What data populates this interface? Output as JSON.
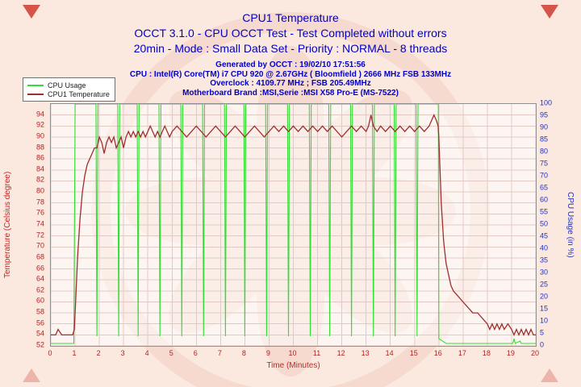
{
  "header": {
    "title": "CPU1 Temperature",
    "subtitle1": "OCCT 3.1.0 - CPU OCCT Test - Test Completed without errors",
    "subtitle2": "20min - Mode : Small Data Set - Priority : NORMAL - 8 threads",
    "info_lines": [
      "Generated by OCCT : 19/02/10 17:51:56",
      "CPU : Intel(R) Core(TM) i7 CPU 920 @ 2.67GHz ( Bloomfield ) 2666 MHz FSB 133MHz",
      "Overclock : 4109.77 MHz ; FSB 205.49MHz",
      "Motherboard Brand :MSI,Serie :MSI X58 Pro-E (MS-7522)"
    ]
  },
  "legend": {
    "items": [
      {
        "label": "CPU Usage",
        "color": "#33dd33"
      },
      {
        "label": "CPU1 Temperature",
        "color": "#9e2f2f"
      }
    ]
  },
  "colors": {
    "title_blue": "#0000cc",
    "temp_axis_red": "#b22222",
    "usage_axis_blue": "#2233bb",
    "background_pink": "#fbe9e0",
    "grid_pink": "#e2c9c3"
  },
  "chart_data": {
    "type": "line",
    "title": "CPU1 Temperature",
    "xlabel": "Time (Minutes)",
    "ylabel_left": "Temperature (Celsius degree)",
    "ylabel_right": "CPU Usage (in %)",
    "grid": true,
    "legend_position": "top-left",
    "x_range": [
      0,
      20
    ],
    "x_step": 1,
    "temp_axis": {
      "min": 52,
      "top": 96,
      "label_max": 94,
      "step": 2
    },
    "usage_axis": {
      "min": 0,
      "max": 100,
      "step": 5
    },
    "series": [
      {
        "name": "CPU Usage",
        "axis": "usage",
        "color": "#33dd33",
        "width": 1.1,
        "points": [
          [
            0,
            1
          ],
          [
            0.95,
            1
          ],
          [
            1,
            100
          ],
          [
            1.86,
            100
          ],
          [
            1.9,
            4
          ],
          [
            1.94,
            100
          ],
          [
            2.76,
            100
          ],
          [
            2.8,
            4
          ],
          [
            2.84,
            100
          ],
          [
            3.56,
            100
          ],
          [
            3.6,
            4
          ],
          [
            3.64,
            100
          ],
          [
            4.46,
            100
          ],
          [
            4.5,
            4
          ],
          [
            4.54,
            100
          ],
          [
            5.36,
            100
          ],
          [
            5.4,
            4
          ],
          [
            5.44,
            100
          ],
          [
            6.26,
            100
          ],
          [
            6.3,
            4
          ],
          [
            6.34,
            100
          ],
          [
            7.16,
            100
          ],
          [
            7.2,
            4
          ],
          [
            7.24,
            100
          ],
          [
            7.96,
            100
          ],
          [
            8,
            4
          ],
          [
            8.04,
            100
          ],
          [
            8.86,
            100
          ],
          [
            8.9,
            4
          ],
          [
            8.94,
            100
          ],
          [
            9.76,
            100
          ],
          [
            9.8,
            4
          ],
          [
            9.84,
            100
          ],
          [
            10.66,
            100
          ],
          [
            10.7,
            4
          ],
          [
            10.74,
            100
          ],
          [
            11.46,
            100
          ],
          [
            11.5,
            4
          ],
          [
            11.54,
            100
          ],
          [
            12.36,
            100
          ],
          [
            12.4,
            4
          ],
          [
            12.44,
            100
          ],
          [
            13.26,
            100
          ],
          [
            13.3,
            4
          ],
          [
            13.34,
            100
          ],
          [
            14.16,
            100
          ],
          [
            14.2,
            4
          ],
          [
            14.24,
            100
          ],
          [
            15.06,
            100
          ],
          [
            15.1,
            4
          ],
          [
            15.14,
            100
          ],
          [
            15.98,
            100
          ],
          [
            16,
            3
          ],
          [
            16.3,
            1
          ],
          [
            19.05,
            1
          ],
          [
            19.1,
            3
          ],
          [
            19.15,
            1
          ],
          [
            19.35,
            2
          ],
          [
            19.4,
            1
          ],
          [
            20,
            1
          ]
        ]
      },
      {
        "name": "CPU1 Temperature",
        "axis": "temp",
        "color": "#9e2f2f",
        "width": 1.3,
        "points": [
          [
            0,
            54
          ],
          [
            0.2,
            54
          ],
          [
            0.3,
            55
          ],
          [
            0.45,
            54
          ],
          [
            0.7,
            54
          ],
          [
            0.9,
            54
          ],
          [
            0.97,
            55
          ],
          [
            1,
            58
          ],
          [
            1.05,
            63
          ],
          [
            1.1,
            68
          ],
          [
            1.2,
            75
          ],
          [
            1.3,
            80
          ],
          [
            1.4,
            83
          ],
          [
            1.5,
            85
          ],
          [
            1.6,
            86
          ],
          [
            1.7,
            87
          ],
          [
            1.8,
            88
          ],
          [
            1.9,
            88
          ],
          [
            2,
            90
          ],
          [
            2.1,
            89
          ],
          [
            2.2,
            87
          ],
          [
            2.3,
            89
          ],
          [
            2.4,
            90
          ],
          [
            2.5,
            89
          ],
          [
            2.6,
            90
          ],
          [
            2.7,
            88
          ],
          [
            2.8,
            89
          ],
          [
            2.9,
            90
          ],
          [
            3,
            88
          ],
          [
            3.1,
            90
          ],
          [
            3.2,
            91
          ],
          [
            3.3,
            90
          ],
          [
            3.4,
            91
          ],
          [
            3.5,
            90
          ],
          [
            3.6,
            91
          ],
          [
            3.7,
            90
          ],
          [
            3.8,
            91
          ],
          [
            3.9,
            90
          ],
          [
            4,
            91
          ],
          [
            4.1,
            92
          ],
          [
            4.2,
            91
          ],
          [
            4.3,
            90
          ],
          [
            4.4,
            91
          ],
          [
            4.5,
            90
          ],
          [
            4.6,
            91
          ],
          [
            4.7,
            92
          ],
          [
            4.8,
            91
          ],
          [
            4.9,
            90
          ],
          [
            5,
            91
          ],
          [
            5.2,
            92
          ],
          [
            5.4,
            91
          ],
          [
            5.6,
            90
          ],
          [
            5.8,
            91
          ],
          [
            6,
            92
          ],
          [
            6.2,
            91
          ],
          [
            6.4,
            90
          ],
          [
            6.6,
            91
          ],
          [
            6.8,
            92
          ],
          [
            7,
            91
          ],
          [
            7.2,
            90
          ],
          [
            7.4,
            91
          ],
          [
            7.6,
            92
          ],
          [
            7.8,
            91
          ],
          [
            8,
            90
          ],
          [
            8.2,
            91
          ],
          [
            8.4,
            92
          ],
          [
            8.6,
            91
          ],
          [
            8.8,
            90
          ],
          [
            9,
            91
          ],
          [
            9.2,
            92
          ],
          [
            9.4,
            91
          ],
          [
            9.6,
            92
          ],
          [
            9.8,
            91
          ],
          [
            10,
            92
          ],
          [
            10.2,
            91
          ],
          [
            10.4,
            92
          ],
          [
            10.6,
            91
          ],
          [
            10.8,
            92
          ],
          [
            11,
            91
          ],
          [
            11.2,
            92
          ],
          [
            11.4,
            91
          ],
          [
            11.6,
            92
          ],
          [
            11.8,
            91
          ],
          [
            12,
            90
          ],
          [
            12.2,
            91
          ],
          [
            12.4,
            92
          ],
          [
            12.6,
            91
          ],
          [
            12.8,
            92
          ],
          [
            13,
            91
          ],
          [
            13.1,
            92
          ],
          [
            13.2,
            94
          ],
          [
            13.3,
            92
          ],
          [
            13.45,
            91
          ],
          [
            13.6,
            92
          ],
          [
            13.8,
            91
          ],
          [
            14,
            92
          ],
          [
            14.2,
            91
          ],
          [
            14.4,
            92
          ],
          [
            14.6,
            91
          ],
          [
            14.8,
            92
          ],
          [
            15,
            91
          ],
          [
            15.2,
            92
          ],
          [
            15.4,
            91
          ],
          [
            15.6,
            92
          ],
          [
            15.8,
            94
          ],
          [
            15.9,
            93
          ],
          [
            15.97,
            92
          ],
          [
            16,
            90
          ],
          [
            16.05,
            84
          ],
          [
            16.1,
            78
          ],
          [
            16.2,
            71
          ],
          [
            16.3,
            67
          ],
          [
            16.4,
            65
          ],
          [
            16.5,
            63
          ],
          [
            16.6,
            62
          ],
          [
            16.8,
            61
          ],
          [
            17,
            60
          ],
          [
            17.2,
            59
          ],
          [
            17.4,
            58
          ],
          [
            17.6,
            58
          ],
          [
            17.8,
            57
          ],
          [
            18,
            56
          ],
          [
            18.1,
            55
          ],
          [
            18.2,
            56
          ],
          [
            18.3,
            55
          ],
          [
            18.4,
            56
          ],
          [
            18.5,
            55
          ],
          [
            18.6,
            56
          ],
          [
            18.7,
            55
          ],
          [
            18.85,
            56
          ],
          [
            19,
            55
          ],
          [
            19.1,
            54
          ],
          [
            19.2,
            55
          ],
          [
            19.3,
            54
          ],
          [
            19.4,
            55
          ],
          [
            19.5,
            54
          ],
          [
            19.6,
            55
          ],
          [
            19.7,
            54
          ],
          [
            19.8,
            55
          ],
          [
            19.9,
            54
          ],
          [
            20,
            54
          ]
        ]
      }
    ]
  }
}
